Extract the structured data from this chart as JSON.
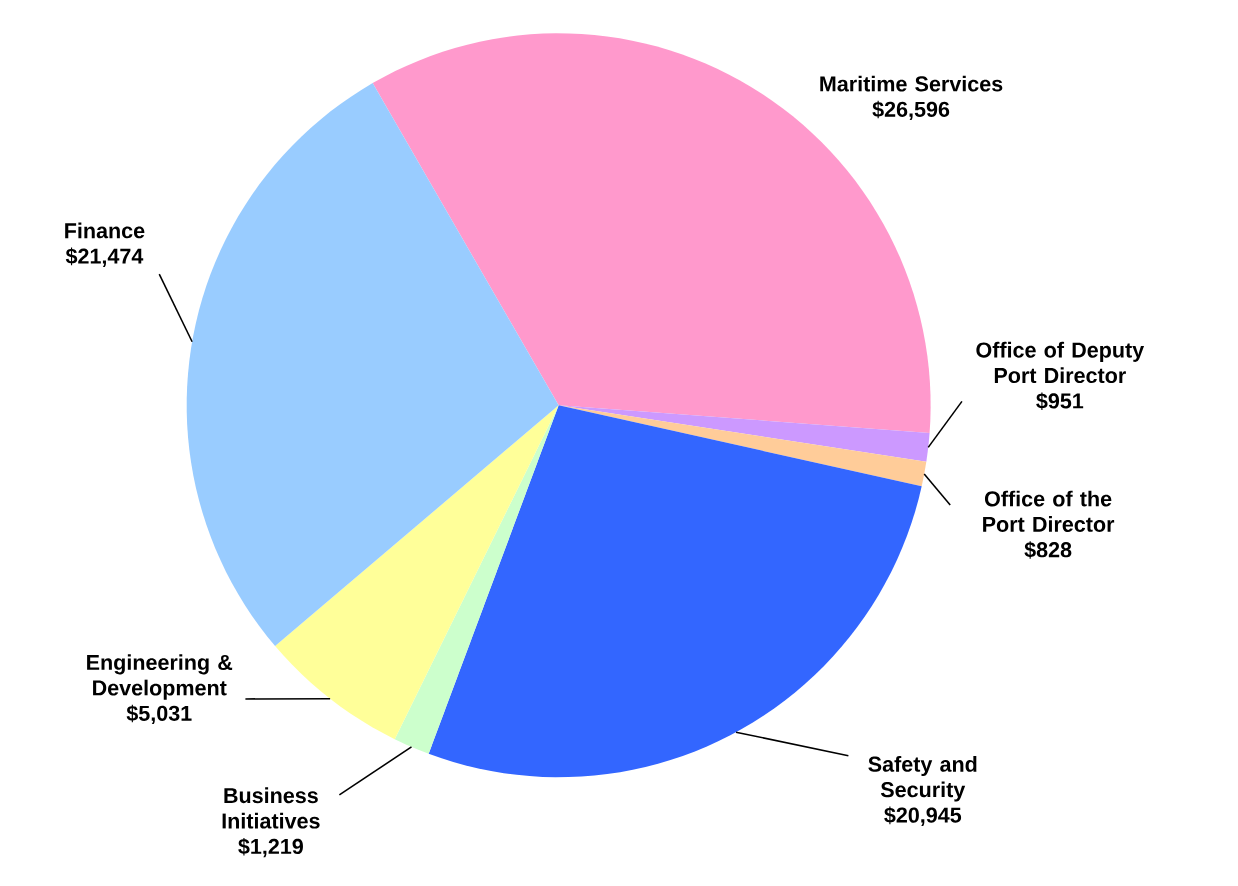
{
  "chart_data": {
    "type": "pie",
    "categories": [
      "Maritime Services",
      "Office of Deputy Port Director",
      "Office of the Port Director",
      "Safety and Security",
      "Business Initiatives",
      "Engineering & Development",
      "Finance"
    ],
    "values": [
      26596,
      951,
      828,
      20945,
      1219,
      5031,
      21474
    ],
    "value_labels": [
      "$26,596",
      "$951",
      "$828",
      "$20,945",
      "$1,219",
      "$5,031",
      "$21,474"
    ],
    "colors": [
      "#ff99cc",
      "#cc99ff",
      "#ffcc99",
      "#3366ff",
      "#ccffcc",
      "#ffff99",
      "#99ccff"
    ]
  }
}
